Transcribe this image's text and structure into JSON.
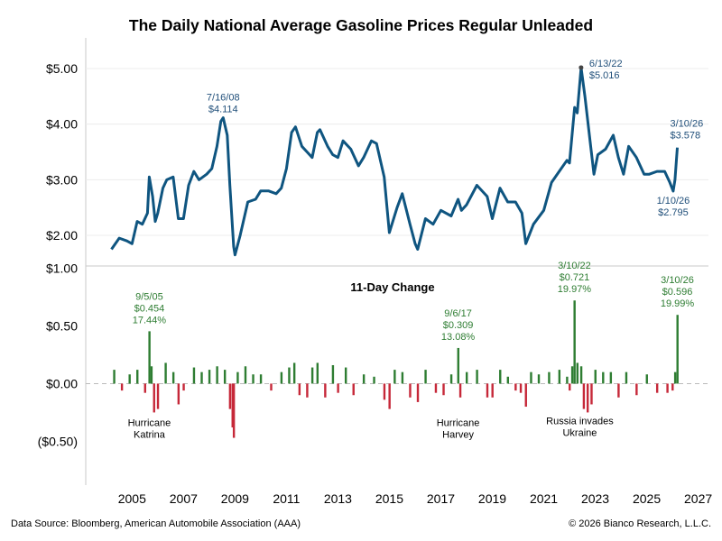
{
  "title": "The Daily National Average Gasoline Prices Regular Unleaded",
  "footer": {
    "source": "Data Source: Bloomberg, American Automobile Association (AAA)",
    "copyright": "© 2026 Bianco Research, L.L.C."
  },
  "colors": {
    "price_line": "#0f5580",
    "positive": "#2e7d32",
    "negative": "#c62839",
    "zero_line": "#bbbbbb"
  },
  "chart_data": [
    {
      "type": "line",
      "title": "The Daily National Average Gasoline Prices Regular Unleaded",
      "series": [
        {
          "x": [
            2004.2,
            2004.5,
            2004.8,
            2005.0,
            2005.2,
            2005.4,
            2005.6,
            2005.67,
            2005.8,
            2005.9,
            2006.0,
            2006.2,
            2006.35,
            2006.6,
            2006.8,
            2007.0,
            2007.2,
            2007.4,
            2007.6,
            2007.9,
            2008.1,
            2008.3,
            2008.45,
            2008.54,
            2008.7,
            2008.8,
            2008.95,
            2009.0,
            2009.2,
            2009.5,
            2009.8,
            2010.0,
            2010.3,
            2010.6,
            2010.8,
            2011.0,
            2011.2,
            2011.35,
            2011.6,
            2011.8,
            2012.0,
            2012.2,
            2012.3,
            2012.6,
            2012.8,
            2013.0,
            2013.2,
            2013.5,
            2013.8,
            2014.0,
            2014.3,
            2014.5,
            2014.8,
            2015.0,
            2015.3,
            2015.5,
            2015.8,
            2016.0,
            2016.1,
            2016.4,
            2016.7,
            2017.0,
            2017.4,
            2017.67,
            2017.8,
            2018.0,
            2018.4,
            2018.8,
            2019.0,
            2019.3,
            2019.6,
            2019.9,
            2020.15,
            2020.3,
            2020.6,
            2021.0,
            2021.3,
            2021.6,
            2021.9,
            2022.0,
            2022.2,
            2022.3,
            2022.45,
            2022.6,
            2022.8,
            2022.95,
            2023.1,
            2023.4,
            2023.7,
            2023.9,
            2024.1,
            2024.3,
            2024.6,
            2024.9,
            2025.1,
            2025.4,
            2025.7,
            2025.9,
            2026.03,
            2026.1,
            2026.19
          ],
          "y": [
            1.75,
            1.95,
            1.9,
            1.85,
            2.25,
            2.2,
            2.4,
            3.05,
            2.7,
            2.25,
            2.4,
            2.85,
            3.0,
            3.05,
            2.3,
            2.3,
            2.9,
            3.15,
            3.0,
            3.1,
            3.2,
            3.6,
            4.05,
            4.114,
            3.8,
            2.9,
            1.8,
            1.65,
            2.0,
            2.6,
            2.65,
            2.8,
            2.8,
            2.75,
            2.85,
            3.2,
            3.85,
            3.95,
            3.6,
            3.5,
            3.4,
            3.85,
            3.9,
            3.6,
            3.45,
            3.4,
            3.7,
            3.55,
            3.25,
            3.4,
            3.7,
            3.65,
            3.05,
            2.05,
            2.5,
            2.75,
            2.2,
            1.85,
            1.75,
            2.3,
            2.2,
            2.45,
            2.35,
            2.65,
            2.45,
            2.55,
            2.9,
            2.7,
            2.3,
            2.85,
            2.6,
            2.6,
            2.4,
            1.85,
            2.2,
            2.45,
            2.95,
            3.15,
            3.35,
            3.3,
            4.3,
            4.2,
            5.016,
            4.5,
            3.7,
            3.1,
            3.45,
            3.55,
            3.8,
            3.4,
            3.1,
            3.6,
            3.4,
            3.1,
            3.1,
            3.15,
            3.15,
            2.95,
            2.795,
            3.0,
            3.578
          ]
        }
      ],
      "xlim": [
        2003.2,
        2027.4
      ],
      "ylim": [
        1.45,
        5.55
      ],
      "y_ticks": [
        5.0,
        4.0,
        3.0,
        2.0
      ],
      "y_tick_labels": [
        "$5.00",
        "$4.00",
        "$3.00",
        "$2.00"
      ],
      "annotations": [
        {
          "x": 2008.54,
          "y": 4.114,
          "lines": [
            "7/16/08",
            "$4.114"
          ]
        },
        {
          "x": 2022.45,
          "y": 5.016,
          "lines": [
            "6/13/22",
            "$5.016"
          ]
        },
        {
          "x": 2026.19,
          "y": 3.578,
          "lines": [
            "3/10/26",
            "$3.578"
          ]
        },
        {
          "x": 2026.03,
          "y": 2.795,
          "lines": [
            "1/10/26",
            "$2.795"
          ]
        }
      ]
    },
    {
      "type": "bar",
      "title": "11-Day Change",
      "xlim": [
        2003.2,
        2027.4
      ],
      "ylim": [
        -0.88,
        1.02
      ],
      "y_ticks": [
        1.0,
        0.5,
        0.0,
        -0.5
      ],
      "y_tick_labels": [
        "$1.00",
        "$0.50",
        "$0.00",
        "($0.50)"
      ],
      "x_ticks": [
        2005,
        2007,
        2009,
        2011,
        2013,
        2015,
        2017,
        2019,
        2021,
        2023,
        2025,
        2027
      ],
      "x_tick_labels": [
        "2005",
        "2007",
        "2009",
        "2011",
        "2013",
        "2015",
        "2017",
        "2019",
        "2021",
        "2023",
        "2025",
        "2027"
      ],
      "series": [
        {
          "x": [
            2004.3,
            2004.6,
            2004.9,
            2005.2,
            2005.5,
            2005.67,
            2005.75,
            2005.85,
            2006.0,
            2006.3,
            2006.6,
            2006.8,
            2007.0,
            2007.4,
            2007.7,
            2008.0,
            2008.3,
            2008.6,
            2008.8,
            2008.9,
            2008.95,
            2009.1,
            2009.4,
            2009.7,
            2010.0,
            2010.4,
            2010.8,
            2011.1,
            2011.3,
            2011.5,
            2011.8,
            2012.0,
            2012.2,
            2012.5,
            2012.8,
            2013.0,
            2013.3,
            2013.6,
            2014.0,
            2014.4,
            2014.8,
            2015.0,
            2015.2,
            2015.5,
            2015.8,
            2016.1,
            2016.4,
            2016.8,
            2017.1,
            2017.4,
            2017.67,
            2017.75,
            2018.0,
            2018.4,
            2018.8,
            2019.0,
            2019.3,
            2019.6,
            2019.9,
            2020.1,
            2020.3,
            2020.5,
            2020.8,
            2021.2,
            2021.6,
            2021.9,
            2022.0,
            2022.1,
            2022.19,
            2022.3,
            2022.45,
            2022.55,
            2022.7,
            2022.85,
            2023.0,
            2023.3,
            2023.6,
            2023.9,
            2024.2,
            2024.6,
            2025.0,
            2025.4,
            2025.8,
            2026.0,
            2026.1,
            2026.19
          ],
          "y": [
            0.12,
            -0.06,
            0.08,
            0.12,
            -0.08,
            0.454,
            0.15,
            -0.25,
            -0.22,
            0.18,
            0.1,
            -0.18,
            -0.06,
            0.14,
            0.1,
            0.12,
            0.15,
            0.12,
            -0.22,
            -0.38,
            -0.47,
            0.1,
            0.15,
            0.08,
            0.08,
            -0.06,
            0.1,
            0.14,
            0.18,
            -0.1,
            -0.12,
            0.14,
            0.18,
            -0.12,
            0.16,
            -0.08,
            0.14,
            -0.1,
            0.08,
            0.06,
            -0.14,
            -0.22,
            0.12,
            0.1,
            -0.12,
            -0.16,
            0.12,
            -0.08,
            -0.1,
            0.08,
            0.309,
            -0.12,
            0.1,
            0.12,
            -0.12,
            -0.12,
            0.12,
            0.06,
            -0.06,
            -0.08,
            -0.2,
            0.1,
            0.08,
            0.1,
            0.12,
            0.06,
            -0.06,
            0.15,
            0.721,
            0.18,
            0.15,
            -0.22,
            -0.25,
            -0.18,
            0.12,
            0.1,
            0.1,
            -0.12,
            0.1,
            -0.1,
            0.08,
            -0.08,
            -0.08,
            -0.06,
            0.1,
            0.596
          ]
        }
      ],
      "annotations": [
        {
          "x": 2005.67,
          "y": 0.454,
          "lines": [
            "9/5/05",
            "$0.454",
            "17.44%"
          ]
        },
        {
          "x": 2017.67,
          "y": 0.309,
          "lines": [
            "9/6/17",
            "$0.309",
            "13.08%"
          ]
        },
        {
          "x": 2022.19,
          "y": 0.721,
          "lines": [
            "3/10/22",
            "$0.721",
            "19.97%"
          ]
        },
        {
          "x": 2026.19,
          "y": 0.596,
          "lines": [
            "3/10/26",
            "$0.596",
            "19.99%"
          ]
        }
      ],
      "events": [
        {
          "x": 2005.67,
          "lines": [
            "Hurricane",
            "Katrina"
          ]
        },
        {
          "x": 2017.67,
          "lines": [
            "Hurricane",
            "Harvey"
          ]
        },
        {
          "x": 2022.19,
          "lines": [
            "Russia invades",
            "Ukraine"
          ]
        }
      ]
    }
  ]
}
